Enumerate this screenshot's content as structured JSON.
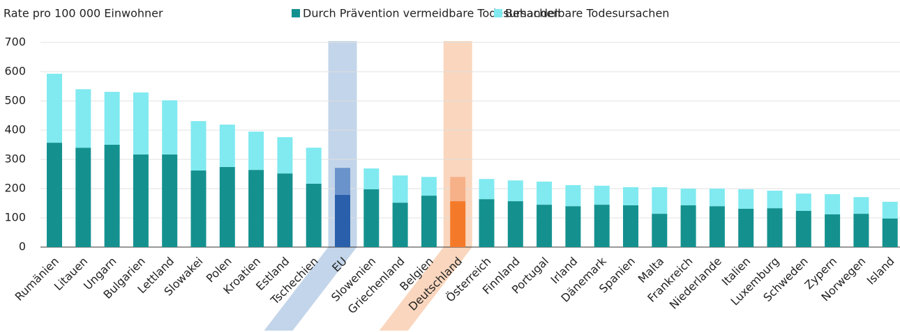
{
  "chart_data": {
    "type": "stacked_bar",
    "ylabel": "Rate pro 100 000 Einwohner",
    "categories": [
      "Rumänien",
      "Litauen",
      "Ungarn",
      "Bulgarien",
      "Lettland",
      "Slowakei",
      "Polen",
      "Kroatien",
      "Estland",
      "Tschechien",
      "EU",
      "Slowenien",
      "Griechenland",
      "Belgien",
      "Deutschland",
      "Österreich",
      "Finnland",
      "Portugal",
      "Irland",
      "Dänemark",
      "Spanien",
      "Malta",
      "Frankreich",
      "Niederlande",
      "Italien",
      "Luxemburg",
      "Schweden",
      "Zypern",
      "Norwegen",
      "Island"
    ],
    "series": [
      {
        "name": "Durch Prävention vermeidbare Todesursachen",
        "color": "#14918f",
        "values": [
          357,
          340,
          350,
          317,
          317,
          262,
          274,
          264,
          252,
          217,
          179,
          198,
          152,
          176,
          157,
          164,
          157,
          145,
          140,
          145,
          143,
          114,
          143,
          140,
          131,
          133,
          124,
          112,
          114,
          98
        ]
      },
      {
        "name": "Behandelbare Todesursachen",
        "color": "#80eaf0",
        "values": [
          236,
          200,
          181,
          212,
          185,
          169,
          145,
          131,
          124,
          123,
          92,
          71,
          93,
          64,
          83,
          69,
          71,
          79,
          72,
          65,
          62,
          91,
          57,
          60,
          67,
          60,
          59,
          69,
          57,
          57
        ]
      }
    ],
    "highlights": [
      {
        "category": "EU",
        "band_color": "#c3d5ea",
        "colors": [
          "#2a5fab",
          "#6b93cb"
        ]
      },
      {
        "category": "Deutschland",
        "band_color": "#f9d6bd",
        "colors": [
          "#f47a2a",
          "#f7b189"
        ]
      }
    ],
    "ylim": [
      0,
      700
    ],
    "yticks": [
      0,
      100,
      200,
      300,
      400,
      500,
      600,
      700
    ],
    "grid": true
  }
}
